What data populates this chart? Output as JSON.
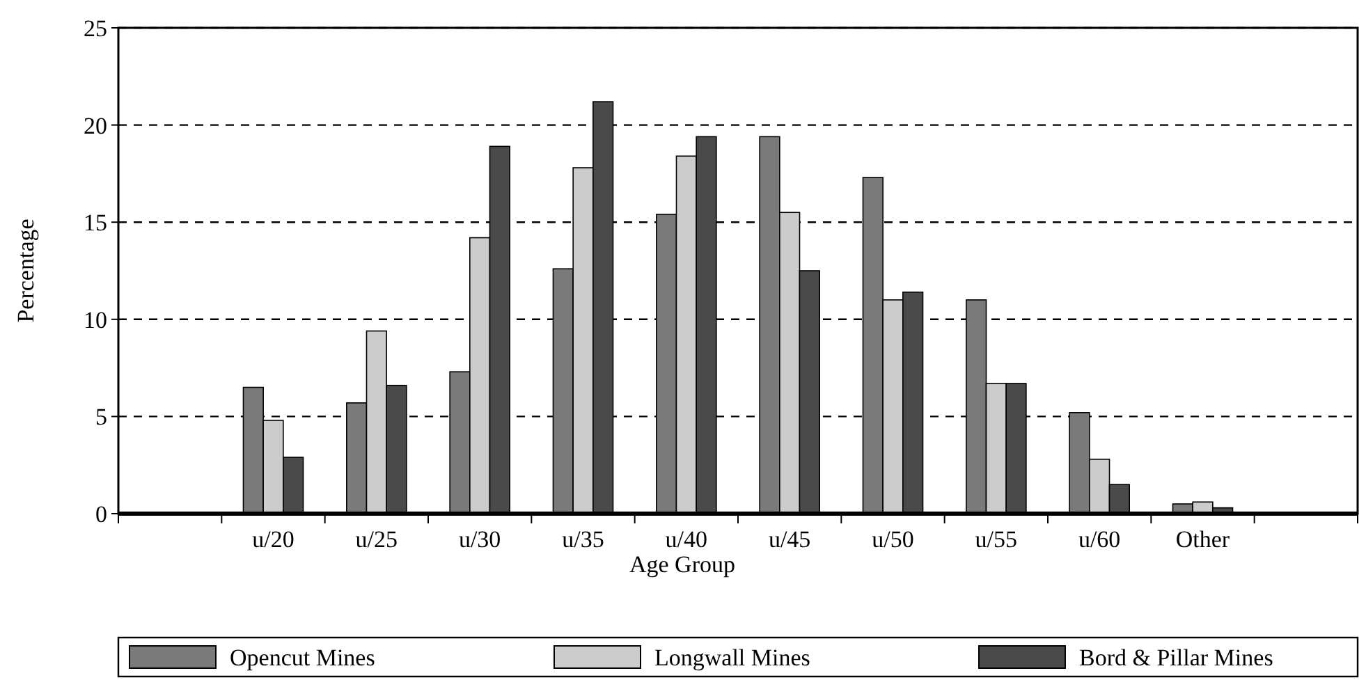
{
  "chart_data": {
    "type": "bar",
    "xlabel": "Age Group",
    "ylabel": "Percentage",
    "categories": [
      null,
      "u/20",
      "u/25",
      "u/30",
      "u/35",
      "u/40",
      "u/45",
      "u/50",
      "u/55",
      "u/60",
      "Other",
      null
    ],
    "series": [
      {
        "name": "Opencut Mines",
        "color": "#7a7a7a",
        "values": [
          null,
          6.5,
          5.7,
          7.3,
          12.6,
          15.4,
          19.4,
          17.3,
          11.0,
          5.2,
          0.5,
          null
        ]
      },
      {
        "name": "Longwall Mines",
        "color": "#cccccc",
        "values": [
          null,
          4.8,
          9.4,
          14.2,
          17.8,
          18.4,
          15.5,
          11.0,
          6.7,
          2.8,
          0.6,
          null
        ]
      },
      {
        "name": "Bord & Pillar Mines",
        "color": "#4a4a4a",
        "values": [
          null,
          2.9,
          6.6,
          18.9,
          21.2,
          19.4,
          12.5,
          11.4,
          6.7,
          1.5,
          0.3,
          null
        ]
      }
    ],
    "ylim": [
      0,
      25
    ],
    "yticks": [
      0,
      5,
      10,
      15,
      20,
      25
    ],
    "grid": "y",
    "legend": "bottom"
  }
}
